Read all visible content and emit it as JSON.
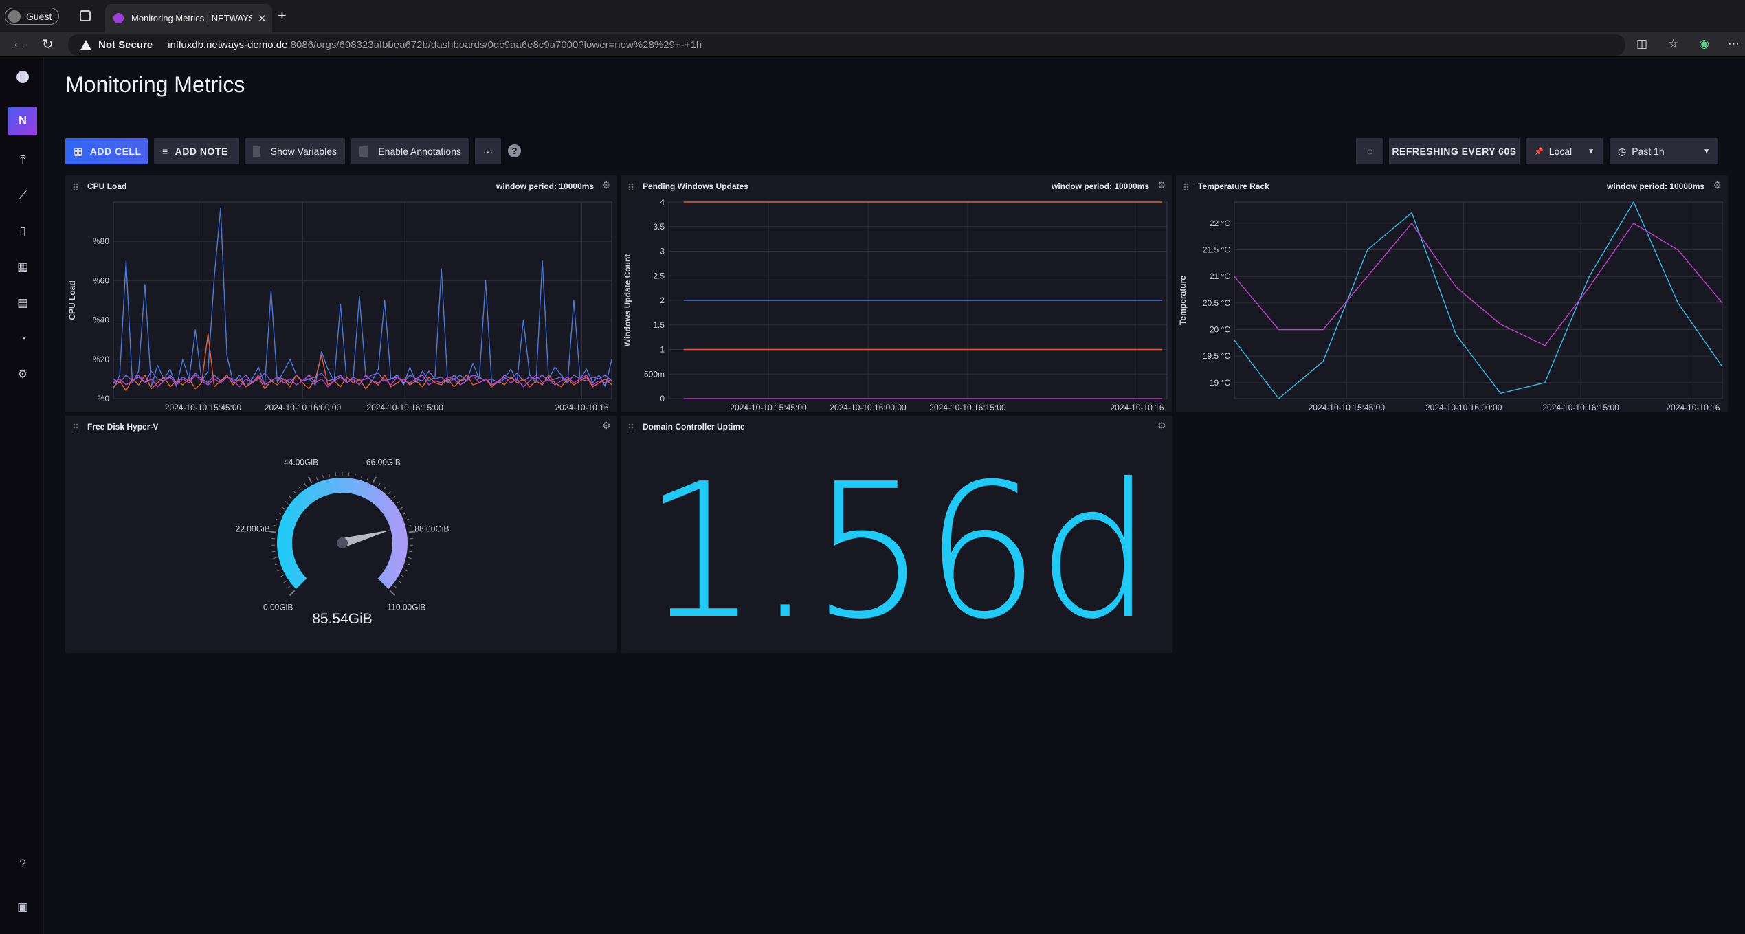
{
  "browser": {
    "profile_label": "Guest",
    "tab_title": "Monitoring Metrics | NETWAYS",
    "security_label": "Not Secure",
    "url_host": "influxdb.netways-demo.de",
    "url_rest": ":8086/orgs/698323afbbea672b/dashboards/0dc9aa6e8c9a7000?lower=now%28%29+-+1h"
  },
  "sidebar": {
    "org_initial": "N",
    "items": [
      "load-data",
      "data-explorer",
      "notebooks",
      "dashboards",
      "tasks",
      "alerts",
      "settings"
    ]
  },
  "dashboard": {
    "title": "Monitoring Metrics",
    "toolbar": {
      "add_cell": "ADD CELL",
      "add_note": "ADD NOTE",
      "show_variables": "Show Variables",
      "enable_annotations": "Enable Annotations",
      "more": "···",
      "help": "?",
      "refreshing": "REFRESHING EVERY 60S",
      "timezone": "Local",
      "time_range": "Past 1h"
    },
    "cells": {
      "cpu": {
        "title": "CPU Load",
        "meta": "window period: 10000ms",
        "ylabel": "CPU Load"
      },
      "updates": {
        "title": "Pending Windows Updates",
        "meta": "window period: 10000ms",
        "ylabel": "Windows Update Count"
      },
      "temp": {
        "title": "Temperature Rack",
        "meta": "window period: 10000ms",
        "ylabel": "Temperature"
      },
      "disk": {
        "title": "Free Disk Hyper-V",
        "value": "85.54GiB"
      },
      "uptime": {
        "title": "Domain Controller Uptime",
        "value": "1.56d"
      }
    }
  },
  "colors": {
    "accent": "#4a61ec",
    "stat": "#22c9f5",
    "gauge_start": "#22c9f5",
    "gauge_end": "#a89cf7"
  },
  "chart_data": [
    {
      "type": "line",
      "title": "CPU Load",
      "ylabel": "CPU Load",
      "yticks": [
        "%0",
        "%20",
        "%40",
        "%60",
        "%80"
      ],
      "xticks": [
        "2024-10-10 15:45:00",
        "2024-10-10 16:00:00",
        "2024-10-10 16:15:00",
        "2024-10-10 16"
      ],
      "ylim": [
        0,
        100
      ],
      "series": [
        {
          "color": "#4c78d8",
          "values": [
            5,
            12,
            70,
            8,
            14,
            58,
            6,
            17,
            10,
            15,
            6,
            20,
            10,
            35,
            9,
            14,
            62,
            97,
            22,
            8,
            12,
            6,
            10,
            16,
            7,
            55,
            8,
            14,
            20,
            12,
            9,
            10,
            7,
            24,
            15,
            9,
            48,
            8,
            10,
            52,
            12,
            9,
            15,
            50,
            10,
            12,
            7,
            16,
            8,
            14,
            9,
            11,
            66,
            8,
            10,
            12,
            9,
            18,
            10,
            60,
            7,
            8,
            10,
            15,
            9,
            40,
            12,
            8,
            70,
            10,
            16,
            12,
            8,
            50,
            10,
            15,
            8,
            12,
            6,
            20
          ]
        },
        {
          "color": "#7b63d8",
          "values": [
            10,
            8,
            12,
            9,
            11,
            8,
            14,
            10,
            9,
            12,
            8,
            11,
            9,
            13,
            10,
            8,
            12,
            9,
            11,
            10,
            9,
            12,
            8,
            10,
            13,
            9,
            11,
            10,
            8,
            12,
            9,
            10,
            11,
            13,
            9,
            10,
            12,
            8,
            11,
            9,
            10,
            12,
            13,
            9,
            10,
            11,
            8,
            12,
            10,
            9,
            14,
            10,
            11,
            8,
            12,
            9,
            10,
            12,
            11,
            9,
            10,
            8,
            12,
            10,
            13,
            9,
            11,
            10,
            12,
            9,
            10,
            11,
            8,
            12,
            10,
            9,
            11,
            10,
            12,
            9
          ]
        },
        {
          "color": "#e0603a",
          "values": [
            6,
            9,
            4,
            10,
            7,
            12,
            5,
            8,
            11,
            6,
            9,
            7,
            10,
            5,
            8,
            33,
            6,
            9,
            12,
            7,
            10,
            6,
            8,
            11,
            5,
            9,
            7,
            10,
            6,
            12,
            8,
            5,
            10,
            22,
            7,
            9,
            6,
            11,
            8,
            10,
            5,
            9,
            7,
            12,
            6,
            8,
            10,
            7,
            9,
            6,
            11,
            8,
            7,
            10,
            6,
            9,
            12,
            7,
            8,
            10,
            6,
            9,
            7,
            11,
            8,
            10,
            6,
            9,
            7,
            12,
            8,
            6,
            10,
            7,
            9,
            11,
            6,
            8,
            10,
            7
          ]
        },
        {
          "color": "#b844c4",
          "values": [
            8,
            10,
            7,
            9,
            12,
            8,
            10,
            6,
            9,
            11,
            7,
            10,
            8,
            12,
            9,
            7,
            10,
            8,
            11,
            9,
            6,
            10,
            8,
            12,
            7,
            9,
            11,
            8,
            10,
            7,
            9,
            12,
            8,
            10,
            6,
            9,
            11,
            8,
            10,
            7,
            12,
            9,
            8,
            10,
            7,
            11,
            9,
            8,
            10,
            12,
            7,
            9,
            8,
            11,
            10,
            7,
            9,
            12,
            8,
            10,
            7,
            9,
            11,
            8,
            10,
            6,
            9,
            12,
            8,
            10,
            7,
            9,
            11,
            8,
            10,
            12,
            7,
            9,
            8,
            10
          ]
        }
      ]
    },
    {
      "type": "line",
      "title": "Pending Windows Updates",
      "ylabel": "Windows Update Count",
      "yticks": [
        "0",
        "500m",
        "1",
        "1.5",
        "2",
        "2.5",
        "3",
        "3.5",
        "4"
      ],
      "xticks": [
        "2024-10-10 15:45:00",
        "2024-10-10 16:00:00",
        "2024-10-10 16:15:00",
        "2024-10-10 16"
      ],
      "ylim": [
        0,
        4
      ],
      "series": [
        {
          "color": "#e0603a",
          "values": [
            4,
            4
          ]
        },
        {
          "color": "#4c78d8",
          "values": [
            2,
            2
          ]
        },
        {
          "color": "#e0603a",
          "values": [
            1,
            1
          ]
        },
        {
          "color": "#b844c4",
          "values": [
            0,
            0
          ]
        }
      ]
    },
    {
      "type": "line",
      "title": "Temperature Rack",
      "ylabel": "Temperature",
      "yticks": [
        "19 °C",
        "19.5 °C",
        "20 °C",
        "20.5 °C",
        "21 °C",
        "21.5 °C",
        "22 °C"
      ],
      "xticks": [
        "2024-10-10 15:45:00",
        "2024-10-10 16:00:00",
        "2024-10-10 16:15:00",
        "2024-10-10 16"
      ],
      "ylim": [
        18.7,
        22.4
      ],
      "series": [
        {
          "color": "#3fb6e0",
          "values": [
            19.8,
            18.7,
            19.4,
            21.5,
            22.2,
            19.9,
            18.8,
            19.0,
            21.0,
            22.4,
            20.5,
            19.3
          ]
        },
        {
          "color": "#b844c4",
          "values": [
            21.0,
            20.0,
            20.0,
            21.0,
            22.0,
            20.8,
            20.1,
            19.7,
            20.8,
            22.0,
            21.5,
            20.5
          ]
        }
      ]
    },
    {
      "type": "gauge",
      "title": "Free Disk Hyper-V",
      "tick_labels": [
        "0.00GiB",
        "22.00GiB",
        "44.00GiB",
        "66.00GiB",
        "88.00GiB",
        "110.00GiB"
      ],
      "min": 0,
      "max": 110,
      "value": 85.54
    }
  ]
}
